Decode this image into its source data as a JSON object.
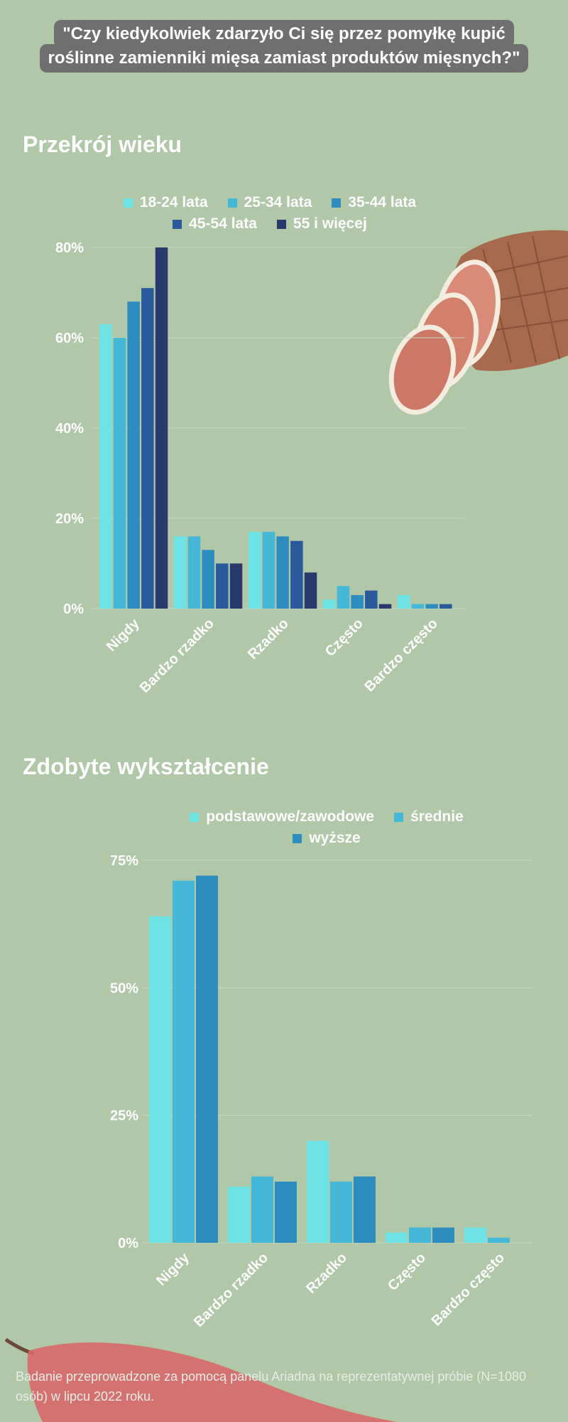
{
  "title": {
    "line1": "\"Czy kiedykolwiek zdarzyło Ci się przez pomyłkę kupić",
    "line2": "roślinne zamienniki mięsa zamiast produktów mięsnych?\""
  },
  "colors": {
    "background": "#b0c7a8",
    "title_box": "#6f6f6f",
    "series": [
      "#6de3e6",
      "#45b8d8",
      "#2d8dbf",
      "#2a5a9b",
      "#283a6b"
    ]
  },
  "chart_data": [
    {
      "type": "bar",
      "title": "Przekrój wieku",
      "categories": [
        "Nigdy",
        "Bardzo rzadko",
        "Rzadko",
        "Często",
        "Bardzo często"
      ],
      "series": [
        {
          "name": "18-24 lata",
          "values": [
            63,
            16,
            17,
            2,
            3
          ]
        },
        {
          "name": "25-34 lata",
          "values": [
            60,
            16,
            17,
            5,
            1
          ]
        },
        {
          "name": "35-44 lata",
          "values": [
            68,
            13,
            16,
            3,
            1
          ]
        },
        {
          "name": "45-54 lata",
          "values": [
            71,
            10,
            15,
            4,
            1
          ]
        },
        {
          "name": "55 i więcej",
          "values": [
            80,
            10,
            8,
            1,
            0
          ]
        }
      ],
      "yticks": [
        "0%",
        "20%",
        "40%",
        "60%",
        "80%"
      ],
      "ylim": [
        0,
        80
      ],
      "grid": true,
      "legend": "top"
    },
    {
      "type": "bar",
      "title": "Zdobyte wykształcenie",
      "categories": [
        "Nigdy",
        "Bardzo rzadko",
        "Rzadko",
        "Często",
        "Bardzo często"
      ],
      "series": [
        {
          "name": "podstawowe/zawodowe",
          "values": [
            64,
            11,
            20,
            2,
            3
          ]
        },
        {
          "name": "średnie",
          "values": [
            71,
            13,
            12,
            3,
            1
          ]
        },
        {
          "name": "wyższe",
          "values": [
            72,
            12,
            13,
            3,
            0
          ]
        }
      ],
      "yticks": [
        "0%",
        "25%",
        "50%",
        "75%"
      ],
      "ylim": [
        0,
        75
      ],
      "grid": true,
      "legend": "top"
    }
  ],
  "footnote": "Badanie przeprowadzone za pomocą panelu Ariadna na reprezentatywnej próbie (N=1080 osób) w lipcu 2022 roku."
}
